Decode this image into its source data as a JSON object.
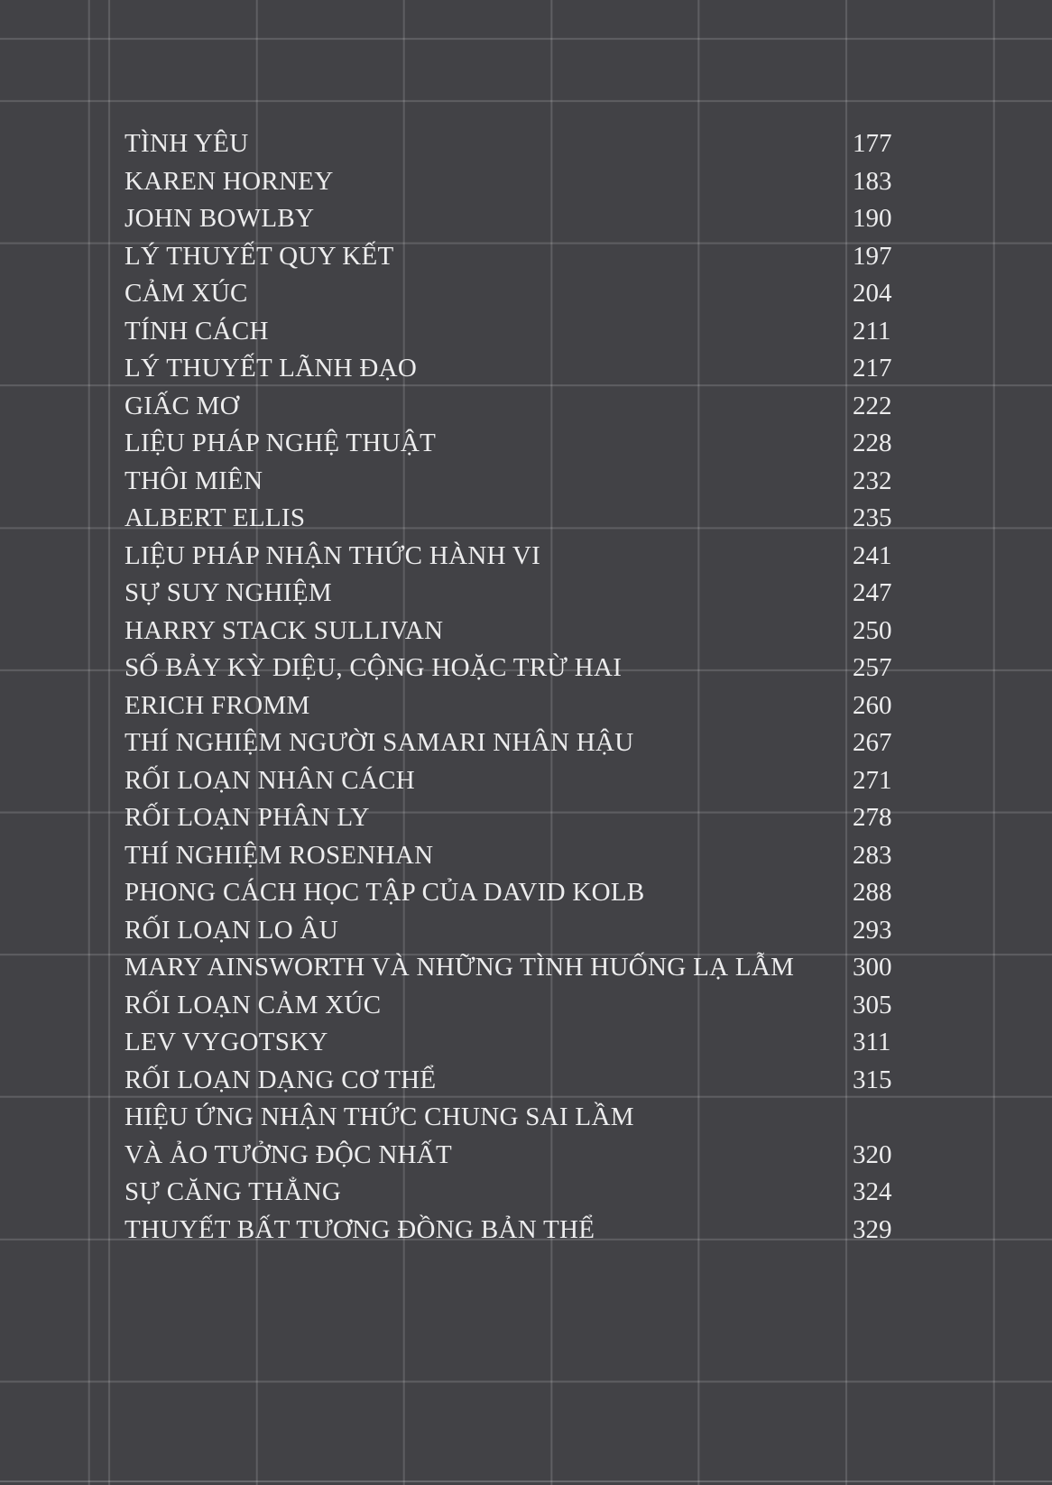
{
  "page": {
    "background_color": "#424246",
    "grid_line_color": "rgba(255,255,255,0.15)",
    "text_color": "#ededee"
  },
  "toc": {
    "entries": [
      {
        "title": "TÌNH YÊU",
        "page": "177"
      },
      {
        "title": "KAREN HORNEY",
        "page": "183"
      },
      {
        "title": "JOHN BOWLBY",
        "page": "190"
      },
      {
        "title": "LÝ THUYẾT QUY KẾT",
        "page": "197"
      },
      {
        "title": "CẢM XÚC",
        "page": "204"
      },
      {
        "title": "TÍNH CÁCH",
        "page": "211"
      },
      {
        "title": "LÝ THUYẾT LÃNH ĐẠO",
        "page": "217"
      },
      {
        "title": "GIẤC MƠ",
        "page": "222"
      },
      {
        "title": "LIỆU PHÁP NGHỆ THUẬT",
        "page": "228"
      },
      {
        "title": "THÔI MIÊN",
        "page": "232"
      },
      {
        "title": "ALBERT ELLIS",
        "page": "235"
      },
      {
        "title": "LIỆU PHÁP NHẬN THỨC HÀNH VI",
        "page": "241"
      },
      {
        "title": "SỰ SUY NGHIỆM",
        "page": "247"
      },
      {
        "title": "HARRY STACK SULLIVAN",
        "page": "250"
      },
      {
        "title": "SỐ BẢY KỲ DIỆU, CỘNG HOẶC TRỪ HAI",
        "page": "257"
      },
      {
        "title": "ERICH FROMM",
        "page": "260"
      },
      {
        "title": "THÍ NGHIỆM NGƯỜI SAMARI NHÂN HẬU",
        "page": "267"
      },
      {
        "title": "RỐI LOẠN NHÂN CÁCH",
        "page": "271"
      },
      {
        "title": "RỐI LOẠN PHÂN LY",
        "page": "278"
      },
      {
        "title": "THÍ NGHIỆM ROSENHAN",
        "page": "283"
      },
      {
        "title": "PHONG CÁCH HỌC TẬP CỦA DAVID KOLB",
        "page": "288"
      },
      {
        "title": "RỐI LOẠN LO ÂU",
        "page": "293"
      },
      {
        "title": "MARY AINSWORTH VÀ NHỮNG TÌNH HUỐNG LẠ LẪM",
        "page": "300"
      },
      {
        "title": "RỐI LOẠN CẢM XÚC",
        "page": "305"
      },
      {
        "title": "LEV VYGOTSKY",
        "page": "311"
      },
      {
        "title": "RỐI LOẠN DẠNG CƠ THỂ",
        "page": "315"
      },
      {
        "title": "HIỆU ỨNG NHẬN THỨC CHUNG SAI LẦM",
        "page": ""
      },
      {
        "title": "VÀ ẢO TƯỞNG ĐỘC NHẤT",
        "page": "320"
      },
      {
        "title": "SỰ CĂNG THẲNG",
        "page": "324"
      },
      {
        "title": "THUYẾT BẤT TƯƠNG ĐỒNG BẢN THỂ",
        "page": "329"
      }
    ]
  }
}
